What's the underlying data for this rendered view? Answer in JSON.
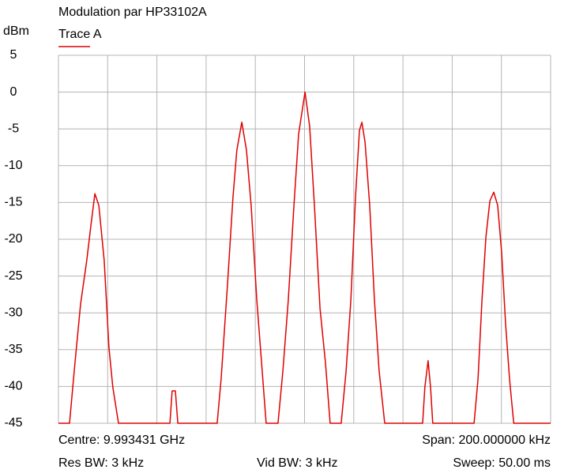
{
  "chart_data": {
    "type": "line",
    "title": "Modulation par HP33102A",
    "y_label": "dBm",
    "xlim": [
      -100,
      100
    ],
    "ylim": [
      -45,
      5
    ],
    "yticks": [
      5,
      0,
      -5,
      -10,
      -15,
      -20,
      -25,
      -30,
      -35,
      -40,
      -45
    ],
    "grid": true,
    "series": [
      {
        "name": "Trace A",
        "color": "#e00000",
        "x": [
          -100,
          -95.5,
          -93.3,
          -91.0,
          -88.5,
          -86.8,
          -85.2,
          -83.6,
          -81.4,
          -79.5,
          -77.9,
          -75.6,
          -54.7,
          -53.8,
          -52.5,
          -51.5,
          -35.5,
          -33.9,
          -31.3,
          -29.1,
          -27.5,
          -25.5,
          -23.6,
          -21.7,
          -19.4,
          -17.2,
          -15.6,
          -10.8,
          -8.8,
          -6.6,
          -4.3,
          -2.4,
          0.2,
          2.1,
          4.0,
          6.3,
          8.5,
          10.4,
          14.9,
          16.9,
          18.8,
          20.7,
          22.3,
          23.3,
          24.6,
          26.5,
          28.4,
          30.3,
          32.6,
          48.0,
          48.9,
          50.2,
          51.2,
          52.1,
          68.9,
          70.5,
          72.1,
          73.7,
          75.3,
          76.9,
          78.5,
          80.1,
          81.7,
          83.3,
          85.0,
          100
        ],
        "values": [
          -45,
          -45,
          -36.8,
          -28.8,
          -22.9,
          -18.1,
          -13.8,
          -15.4,
          -22.9,
          -34.7,
          -40.1,
          -45,
          -45,
          -40.6,
          -40.6,
          -45,
          -45,
          -39,
          -26.1,
          -14.3,
          -7.9,
          -4.1,
          -7.9,
          -15.4,
          -28.3,
          -37.9,
          -45,
          -45,
          -37.9,
          -28.3,
          -15.4,
          -5.7,
          0,
          -4.7,
          -15.4,
          -29.4,
          -36.8,
          -45,
          -45,
          -37.9,
          -28.3,
          -14.3,
          -5.2,
          -4.1,
          -6.8,
          -15.4,
          -28.3,
          -37.9,
          -45,
          -45,
          -40.1,
          -36.5,
          -40.1,
          -45,
          -45,
          -39,
          -28.3,
          -19.7,
          -14.8,
          -13.6,
          -15.4,
          -21.8,
          -31.5,
          -39,
          -45,
          -45
        ]
      }
    ],
    "footer": {
      "centre": "Centre: 9.993431 GHz",
      "span": "Span: 200.000000 kHz",
      "res_bw": "Res BW: 3 kHz",
      "vid_bw": "Vid BW: 3 kHz",
      "sweep": "Sweep: 50.00 ms"
    }
  }
}
